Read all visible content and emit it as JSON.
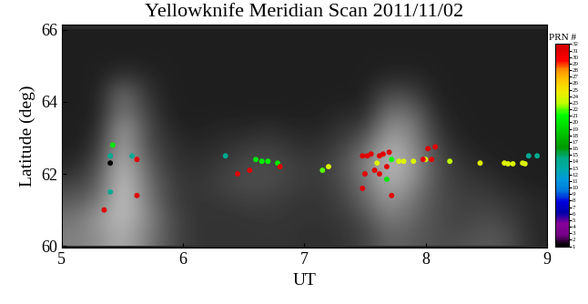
{
  "chart_data": {
    "type": "scatter",
    "title": "Yellowknife Meridian Scan 2011/11/02",
    "x_label": "UT",
    "y_label": "Latitude (deg)",
    "xlim": [
      5,
      9
    ],
    "xticks": [
      5,
      6,
      7,
      8,
      9
    ],
    "ylim": [
      59.95,
      66.15
    ],
    "yticks": [
      60,
      62,
      64,
      66
    ],
    "marker": "o",
    "image": {
      "x_edges": [
        5.0,
        5.2,
        5.4,
        5.6,
        5.8,
        6.0,
        6.2,
        6.4,
        6.6,
        6.8,
        7.0,
        7.2,
        7.4,
        7.6,
        7.8,
        8.0,
        8.2,
        8.4,
        8.6,
        8.8,
        9.0
      ],
      "y_edges": [
        60.0,
        60.5,
        61.0,
        61.5,
        62.0,
        62.5,
        63.0,
        63.5,
        64.0,
        64.5,
        65.0,
        65.5,
        66.0
      ],
      "cell_range": [
        0,
        1
      ],
      "columns": [
        [
          0.5,
          0.45,
          0.35,
          0.25,
          0.15,
          0.12,
          0.12,
          0.12,
          0.12,
          0.12,
          0.12,
          0.12
        ],
        [
          0.55,
          0.6,
          0.45,
          0.35,
          0.3,
          0.2,
          0.15,
          0.12,
          0.12,
          0.12,
          0.12,
          0.12
        ],
        [
          0.7,
          0.75,
          0.8,
          0.8,
          0.75,
          0.7,
          0.65,
          0.5,
          0.45,
          0.2,
          0.12,
          0.12
        ],
        [
          0.5,
          0.55,
          0.5,
          0.45,
          0.4,
          0.3,
          0.3,
          0.25,
          0.2,
          0.15,
          0.12,
          0.12
        ],
        [
          0.3,
          0.3,
          0.25,
          0.25,
          0.2,
          0.2,
          0.15,
          0.12,
          0.12,
          0.12,
          0.12,
          0.12
        ],
        [
          0.2,
          0.2,
          0.2,
          0.2,
          0.18,
          0.15,
          0.12,
          0.12,
          0.12,
          0.12,
          0.12,
          0.12
        ],
        [
          0.2,
          0.2,
          0.22,
          0.25,
          0.22,
          0.18,
          0.15,
          0.12,
          0.12,
          0.12,
          0.12,
          0.12
        ],
        [
          0.2,
          0.2,
          0.25,
          0.3,
          0.28,
          0.22,
          0.15,
          0.12,
          0.12,
          0.12,
          0.12,
          0.12
        ],
        [
          0.2,
          0.22,
          0.25,
          0.3,
          0.3,
          0.25,
          0.18,
          0.12,
          0.12,
          0.12,
          0.12,
          0.12
        ],
        [
          0.2,
          0.2,
          0.22,
          0.25,
          0.25,
          0.2,
          0.15,
          0.12,
          0.12,
          0.12,
          0.12,
          0.12
        ],
        [
          0.18,
          0.2,
          0.2,
          0.22,
          0.22,
          0.18,
          0.14,
          0.12,
          0.12,
          0.12,
          0.12,
          0.12
        ],
        [
          0.2,
          0.22,
          0.25,
          0.28,
          0.3,
          0.25,
          0.2,
          0.15,
          0.12,
          0.12,
          0.12,
          0.12
        ],
        [
          0.25,
          0.3,
          0.4,
          0.45,
          0.5,
          0.4,
          0.25,
          0.15,
          0.12,
          0.12,
          0.12,
          0.12
        ],
        [
          0.4,
          0.5,
          0.6,
          0.7,
          0.75,
          0.7,
          0.6,
          0.45,
          0.3,
          0.15,
          0.12,
          0.12
        ],
        [
          0.35,
          0.4,
          0.45,
          0.55,
          0.6,
          0.55,
          0.5,
          0.4,
          0.25,
          0.15,
          0.12,
          0.12
        ],
        [
          0.3,
          0.3,
          0.3,
          0.3,
          0.3,
          0.25,
          0.2,
          0.15,
          0.12,
          0.12,
          0.12,
          0.12
        ],
        [
          0.3,
          0.25,
          0.25,
          0.22,
          0.2,
          0.15,
          0.12,
          0.12,
          0.12,
          0.12,
          0.12,
          0.12
        ],
        [
          0.35,
          0.3,
          0.25,
          0.2,
          0.15,
          0.12,
          0.12,
          0.12,
          0.12,
          0.12,
          0.12,
          0.12
        ],
        [
          0.3,
          0.25,
          0.2,
          0.15,
          0.12,
          0.12,
          0.12,
          0.12,
          0.12,
          0.12,
          0.12,
          0.12
        ],
        [
          0.15,
          0.15,
          0.15,
          0.12,
          0.12,
          0.12,
          0.12,
          0.12,
          0.12,
          0.12,
          0.12,
          0.12
        ]
      ]
    },
    "x": [
      5.35,
      5.4,
      5.4,
      5.4,
      5.42,
      5.62,
      5.62,
      5.58,
      6.35,
      6.45,
      6.55,
      6.6,
      6.65,
      6.7,
      6.78,
      6.8,
      7.15,
      7.2,
      7.48,
      7.52,
      7.55,
      7.48,
      7.5,
      7.58,
      7.62,
      7.65,
      7.68,
      7.7,
      7.72,
      7.62,
      7.6,
      7.68,
      7.72,
      7.78,
      7.82,
      7.9,
      8.0,
      7.98,
      8.02,
      8.05,
      8.08,
      8.2,
      8.45,
      8.65,
      8.68,
      8.72,
      8.8,
      8.82,
      8.85,
      8.92
    ],
    "y": [
      61.0,
      61.5,
      62.3,
      62.5,
      62.8,
      61.4,
      62.4,
      62.5,
      62.5,
      62.0,
      62.1,
      62.4,
      62.35,
      62.35,
      62.3,
      62.2,
      62.1,
      62.2,
      62.5,
      62.5,
      62.55,
      61.6,
      62.0,
      62.1,
      62.5,
      62.55,
      62.2,
      62.6,
      61.4,
      62.0,
      62.3,
      61.85,
      62.4,
      62.35,
      62.35,
      62.35,
      62.4,
      62.4,
      62.7,
      62.4,
      62.75,
      62.35,
      62.3,
      62.3,
      62.28,
      62.28,
      62.3,
      62.28,
      62.5,
      62.5
    ],
    "prn": [
      31,
      14,
      1,
      14,
      20,
      31,
      31,
      14,
      14,
      31,
      31,
      20,
      21,
      21,
      20,
      31,
      22,
      24,
      31,
      31,
      31,
      31,
      31,
      31,
      31,
      31,
      31,
      31,
      31,
      31,
      24,
      20,
      21,
      24,
      24,
      24,
      24,
      31,
      31,
      31,
      31,
      23,
      24,
      24,
      24,
      24,
      24,
      24,
      14,
      14
    ],
    "colorbar": {
      "label": "PRN #",
      "range": [
        1,
        32
      ],
      "ticks": [
        1,
        2,
        3,
        4,
        5,
        6,
        7,
        8,
        9,
        10,
        11,
        12,
        13,
        14,
        15,
        16,
        17,
        18,
        19,
        20,
        21,
        22,
        23,
        24,
        25,
        26,
        27,
        28,
        29,
        30,
        31,
        32
      ]
    }
  }
}
